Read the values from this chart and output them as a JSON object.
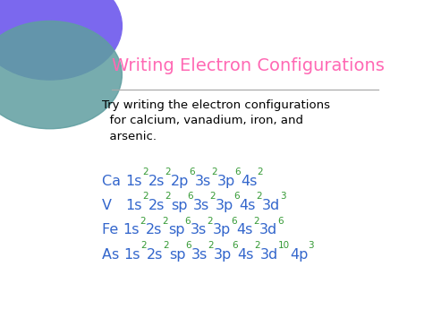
{
  "title": "Writing Electron Configurations",
  "title_color": "#FF69B4",
  "bg_color": "#FFFFFF",
  "body_text": "Try writing the electron configurations\n  for calcium, vanadium, iron, and\n  arsenic.",
  "body_color": "#000000",
  "config_color": "#3366CC",
  "sup_color": "#339933",
  "line_color": "#AAAAAA",
  "circle_color1": "#7B68EE",
  "circle_color2": "#5F9EA0",
  "configs": [
    {
      "element": "Ca",
      "parts": [
        {
          "text": "Ca ",
          "sup": false
        },
        {
          "text": "1s",
          "sup": false
        },
        {
          "text": "2",
          "sup": true
        },
        {
          "text": "2s",
          "sup": false
        },
        {
          "text": "2",
          "sup": true
        },
        {
          "text": "2p",
          "sup": false
        },
        {
          "text": "6",
          "sup": true
        },
        {
          "text": "3s",
          "sup": false
        },
        {
          "text": "2",
          "sup": true
        },
        {
          "text": "3p",
          "sup": false
        },
        {
          "text": "6",
          "sup": true
        },
        {
          "text": "4s",
          "sup": false
        },
        {
          "text": "2",
          "sup": true
        }
      ]
    },
    {
      "element": "V",
      "parts": [
        {
          "text": "V   ",
          "sup": false
        },
        {
          "text": "1s",
          "sup": false
        },
        {
          "text": "2",
          "sup": true
        },
        {
          "text": "2s",
          "sup": false
        },
        {
          "text": "2",
          "sup": true
        },
        {
          "text": "sp",
          "sup": false
        },
        {
          "text": "6",
          "sup": true
        },
        {
          "text": "3s",
          "sup": false
        },
        {
          "text": "2",
          "sup": true
        },
        {
          "text": "3p",
          "sup": false
        },
        {
          "text": "6",
          "sup": true
        },
        {
          "text": "4s",
          "sup": false
        },
        {
          "text": "2",
          "sup": true
        },
        {
          "text": "3d",
          "sup": false
        },
        {
          "text": "3",
          "sup": true
        }
      ]
    },
    {
      "element": "Fe",
      "parts": [
        {
          "text": "Fe ",
          "sup": false
        },
        {
          "text": "1s",
          "sup": false
        },
        {
          "text": "2",
          "sup": true
        },
        {
          "text": "2s",
          "sup": false
        },
        {
          "text": "2",
          "sup": true
        },
        {
          "text": "sp",
          "sup": false
        },
        {
          "text": "6",
          "sup": true
        },
        {
          "text": "3s",
          "sup": false
        },
        {
          "text": "2",
          "sup": true
        },
        {
          "text": "3p",
          "sup": false
        },
        {
          "text": "6",
          "sup": true
        },
        {
          "text": "4s",
          "sup": false
        },
        {
          "text": "2",
          "sup": true
        },
        {
          "text": "3d",
          "sup": false
        },
        {
          "text": "6",
          "sup": true
        }
      ]
    },
    {
      "element": "As",
      "parts": [
        {
          "text": "As ",
          "sup": false
        },
        {
          "text": "1s",
          "sup": false
        },
        {
          "text": "2",
          "sup": true
        },
        {
          "text": "2s",
          "sup": false
        },
        {
          "text": "2",
          "sup": true
        },
        {
          "text": "sp",
          "sup": false
        },
        {
          "text": "6",
          "sup": true
        },
        {
          "text": "3s",
          "sup": false
        },
        {
          "text": "2",
          "sup": true
        },
        {
          "text": "3p",
          "sup": false
        },
        {
          "text": "6",
          "sup": true
        },
        {
          "text": "4s",
          "sup": false
        },
        {
          "text": "2",
          "sup": true
        },
        {
          "text": "3d",
          "sup": false
        },
        {
          "text": "10",
          "sup": true
        },
        {
          "text": "4p",
          "sup": false
        },
        {
          "text": "3",
          "sup": true
        }
      ]
    }
  ]
}
